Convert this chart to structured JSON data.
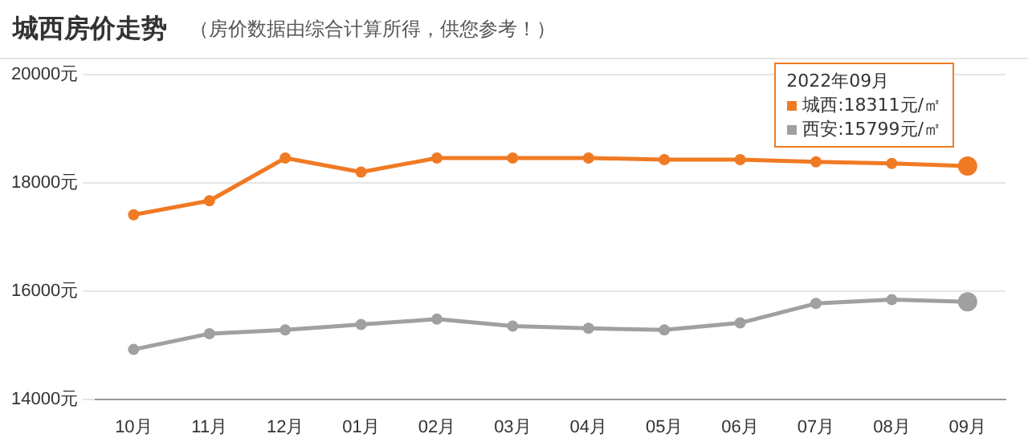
{
  "chart_data": {
    "type": "line",
    "title": "城西房价走势",
    "subtitle": "（房价数据由综合计算所得，供您参考！）",
    "categories": [
      "10月",
      "11月",
      "12月",
      "01月",
      "02月",
      "03月",
      "04月",
      "05月",
      "06月",
      "07月",
      "08月",
      "09月"
    ],
    "series": [
      {
        "name": "城西:18311元/㎡",
        "color": "#f07a23",
        "values": [
          17410,
          17670,
          18460,
          18200,
          18460,
          18460,
          18460,
          18430,
          18430,
          18390,
          18360,
          18311
        ]
      },
      {
        "name": "西安:15799元/㎡",
        "color": "#a0a0a0",
        "values": [
          14920,
          15210,
          15280,
          15380,
          15480,
          15350,
          15310,
          15280,
          15410,
          15770,
          15840,
          15799
        ]
      }
    ],
    "annotations": [
      "2022年09月"
    ],
    "ylim": [
      14000,
      20000
    ],
    "yticks": [
      {
        "value": 14000,
        "label": "14000元"
      },
      {
        "value": 16000,
        "label": "16000元"
      },
      {
        "value": 18000,
        "label": "18000元"
      },
      {
        "value": 20000,
        "label": "20000元"
      }
    ],
    "grid": "y",
    "legend": "top right",
    "marker": "circle",
    "line_style": "solid"
  }
}
